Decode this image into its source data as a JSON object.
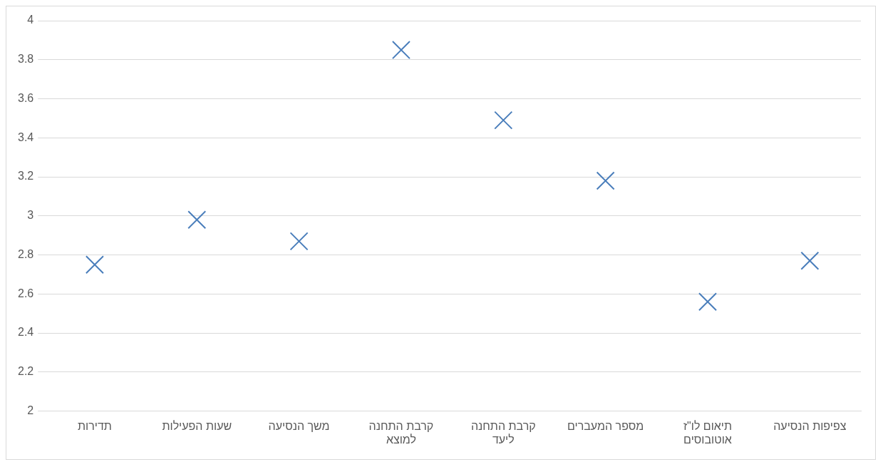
{
  "chart_data": {
    "type": "scatter",
    "categories": [
      "תדירות",
      "שעות הפעילות",
      "משך הנסיעה",
      "קרבת התחנה למוצא",
      "קרבת התחנה ליעד",
      "מספר המעברים",
      "תיאום לו\"ז אוטובוסים",
      "צפיפות הנסיעה"
    ],
    "series": [
      {
        "color": "#4a7ebb",
        "values": [
          2.75,
          2.98,
          2.87,
          3.85,
          3.49,
          3.18,
          2.56,
          2.77
        ]
      }
    ],
    "ylim": [
      2,
      4
    ],
    "yticks": [
      2,
      2.2,
      2.4,
      2.6,
      2.8,
      3,
      3.2,
      3.4,
      3.6,
      3.8,
      4
    ],
    "grid": "y",
    "legend": false,
    "marker": "cross"
  }
}
